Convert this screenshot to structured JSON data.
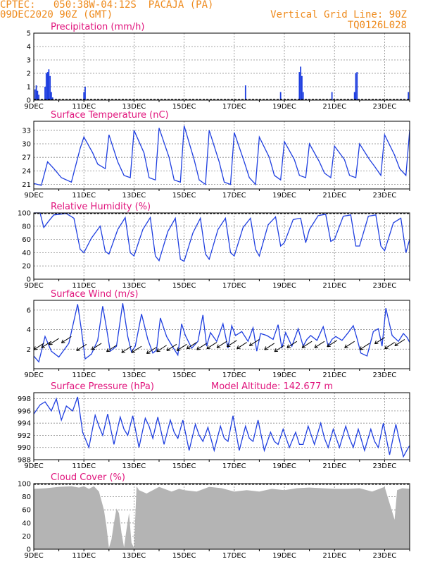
{
  "header": {
    "line1_left": "CPTEC:   050:38W-04:12S  PACAJA (PA)",
    "line2_left": "09DEC2020 90Z (GMT)",
    "line1_right": "Vertical Grid Line: 90Z",
    "line2_right": "TQ0126L028"
  },
  "colors": {
    "line": "#1f3fe0",
    "title": "#e0147c",
    "header": "#ee8a1c",
    "cloud": "#b4b4b4"
  },
  "x_axis": {
    "day_labels": [
      "9DEC",
      "11DEC",
      "13DEC",
      "15DEC",
      "17DEC",
      "19DEC",
      "21DEC",
      "23DEC"
    ]
  },
  "chart_data": [
    {
      "id": "precip",
      "type": "bar",
      "title": "Precipitation (mm/h)",
      "ylim": [
        0,
        5
      ],
      "yticks": [
        "0",
        "1",
        "2",
        "3",
        "4",
        "5"
      ],
      "days": [
        9,
        10,
        11,
        12,
        13,
        14,
        15,
        16,
        17,
        18,
        19,
        20,
        21,
        22,
        23,
        24
      ],
      "values_by_step": "see series",
      "series": [
        {
          "name": "",
          "x": [
            9.05,
            9.1,
            9.15,
            9.2,
            9.45,
            9.5,
            9.55,
            9.6,
            9.65,
            9.7,
            9.75,
            11.0,
            11.05,
            17.45,
            18.85,
            19.6,
            19.65,
            19.7,
            19.75,
            20.9,
            21.8,
            21.85,
            21.9,
            23.95
          ],
          "values": [
            0.8,
            1.1,
            0.7,
            0.4,
            1.0,
            2.0,
            2.1,
            2.3,
            1.8,
            0.6,
            0.2,
            0.6,
            1.0,
            1.1,
            0.6,
            2.1,
            2.5,
            1.8,
            0.6,
            0.6,
            0.6,
            2.0,
            2.1,
            0.6
          ]
        }
      ]
    },
    {
      "id": "temp",
      "type": "line",
      "title": "Surface Temperature (nC)",
      "ylim": [
        20,
        35
      ],
      "yticks": [
        "21",
        "24",
        "27",
        "30",
        "33"
      ],
      "series": [
        {
          "name": "",
          "x": [
            9.0,
            9.3,
            9.55,
            9.8,
            10.1,
            10.5,
            10.85,
            11.0,
            11.35,
            11.55,
            11.85,
            12.0,
            12.35,
            12.6,
            12.85,
            13.0,
            13.4,
            13.6,
            13.85,
            14.0,
            14.4,
            14.6,
            14.85,
            15.0,
            15.4,
            15.6,
            15.85,
            16.0,
            16.4,
            16.6,
            16.85,
            17.0,
            17.4,
            17.6,
            17.85,
            18.0,
            18.4,
            18.6,
            18.85,
            19.0,
            19.4,
            19.6,
            19.85,
            20.0,
            20.4,
            20.6,
            20.85,
            21.0,
            21.4,
            21.6,
            21.85,
            22.0,
            22.4,
            22.6,
            22.85,
            23.0,
            23.4,
            23.6,
            23.85,
            24.0
          ],
          "values": [
            21.2,
            20.8,
            26.0,
            24.5,
            22.5,
            21.5,
            29.0,
            31.5,
            28.0,
            25.5,
            24.5,
            32.0,
            26.0,
            23.0,
            22.5,
            33.0,
            28.0,
            22.5,
            22.0,
            33.5,
            27.0,
            22.0,
            21.5,
            34.0,
            26.5,
            22.0,
            21.0,
            33.0,
            26.0,
            21.5,
            21.0,
            32.5,
            26.0,
            22.5,
            21.0,
            31.5,
            27.0,
            23.0,
            22.0,
            30.5,
            26.5,
            23.0,
            22.5,
            30.0,
            26.0,
            23.5,
            22.5,
            29.5,
            26.5,
            23.0,
            22.5,
            30.0,
            26.5,
            25.0,
            23.0,
            32.0,
            27.5,
            24.5,
            23.0,
            33.0
          ]
        }
      ]
    },
    {
      "id": "rh",
      "type": "line",
      "title": "Relative Humidity (%)",
      "ylim": [
        0,
        100
      ],
      "yticks": [
        "0",
        "20",
        "40",
        "60",
        "80",
        "100"
      ],
      "series": [
        {
          "name": "",
          "x": [
            9.0,
            9.25,
            9.4,
            9.6,
            9.8,
            10.3,
            10.6,
            10.85,
            11.0,
            11.3,
            11.65,
            11.85,
            12.0,
            12.35,
            12.65,
            12.85,
            13.0,
            13.35,
            13.65,
            13.85,
            14.0,
            14.35,
            14.65,
            14.85,
            15.0,
            15.35,
            15.65,
            15.85,
            16.0,
            16.35,
            16.65,
            16.85,
            17.0,
            17.35,
            17.65,
            17.85,
            18.0,
            18.35,
            18.65,
            18.85,
            19.0,
            19.35,
            19.65,
            19.85,
            20.0,
            20.35,
            20.65,
            20.85,
            21.0,
            21.35,
            21.65,
            21.85,
            22.0,
            22.35,
            22.65,
            22.85,
            23.0,
            23.35,
            23.65,
            23.85,
            24.0
          ],
          "values": [
            100,
            100,
            78,
            88,
            97,
            99,
            92,
            45,
            40,
            62,
            80,
            42,
            38,
            75,
            93,
            40,
            35,
            75,
            93,
            35,
            28,
            72,
            92,
            30,
            27,
            70,
            92,
            38,
            30,
            75,
            92,
            40,
            35,
            78,
            92,
            45,
            35,
            82,
            94,
            50,
            55,
            90,
            92,
            55,
            75,
            96,
            98,
            57,
            60,
            95,
            97,
            50,
            50,
            95,
            97,
            50,
            43,
            85,
            92,
            40,
            60
          ]
        }
      ]
    },
    {
      "id": "wind",
      "type": "line",
      "title": "Surface Wind (m/s)",
      "ylim": [
        0,
        7
      ],
      "yticks": [
        "2",
        "4",
        "6"
      ],
      "series": [
        {
          "name": "",
          "x": [
            9.0,
            9.2,
            9.45,
            9.7,
            10.0,
            10.4,
            10.75,
            10.9,
            11.05,
            11.3,
            11.55,
            11.75,
            11.9,
            12.05,
            12.3,
            12.55,
            12.75,
            12.9,
            13.05,
            13.3,
            13.55,
            13.75,
            13.9,
            14.05,
            14.3,
            14.55,
            14.75,
            14.9,
            15.05,
            15.3,
            15.55,
            15.75,
            15.9,
            16.05,
            16.3,
            16.55,
            16.75,
            16.9,
            17.05,
            17.3,
            17.55,
            17.75,
            17.9,
            18.05,
            18.3,
            18.55,
            18.75,
            18.9,
            19.05,
            19.3,
            19.55,
            19.75,
            19.9,
            20.05,
            20.3,
            20.55,
            20.75,
            20.9,
            21.05,
            21.3,
            21.55,
            21.75,
            21.9,
            22.05,
            22.3,
            22.55,
            22.75,
            22.9,
            23.05,
            23.3,
            23.55,
            23.75,
            23.9,
            24.0
          ],
          "values": [
            1.3,
            0.7,
            3.3,
            1.8,
            1.2,
            2.6,
            6.6,
            4.0,
            1.0,
            1.5,
            2.9,
            6.4,
            4.2,
            1.8,
            2.3,
            6.7,
            3.3,
            1.7,
            2.3,
            5.6,
            3.0,
            1.6,
            1.9,
            5.2,
            3.3,
            2.2,
            1.4,
            4.6,
            3.4,
            2.1,
            2.8,
            5.5,
            2.3,
            3.7,
            2.8,
            4.6,
            2.1,
            4.4,
            3.4,
            3.8,
            2.8,
            4.2,
            1.8,
            3.6,
            3.4,
            3.0,
            4.5,
            2.1,
            3.7,
            2.3,
            4.1,
            2.3,
            3.0,
            3.4,
            2.9,
            4.3,
            2.3,
            3.0,
            3.3,
            2.9,
            3.7,
            4.4,
            3.1,
            1.6,
            1.3,
            3.8,
            4.1,
            2.3,
            6.2,
            3.4,
            2.8,
            3.6,
            3.2,
            2.7
          ]
        }
      ],
      "barbs": {
        "x": [
          9.4,
          9.7,
          10.0,
          10.5,
          11.1,
          11.7,
          12.3,
          12.9,
          13.3,
          13.9,
          14.3,
          14.7,
          15.1,
          15.5,
          15.9,
          16.3,
          16.7,
          17.1,
          17.5,
          18.0,
          18.6,
          19.0,
          19.5,
          20.1,
          20.6,
          21.1,
          21.8,
          22.4,
          23.0,
          23.4,
          23.8
        ],
        "values": [
          2.6,
          2.8,
          3.1,
          3.3,
          2.5,
          2.6,
          2.4,
          2.3,
          2.3,
          2.2,
          2.4,
          2.5,
          2.5,
          2.7,
          2.6,
          2.7,
          2.8,
          2.9,
          2.7,
          3.0,
          2.6,
          2.4,
          2.8,
          2.8,
          2.8,
          2.9,
          2.8,
          2.6,
          3.2,
          2.7,
          3.0
        ]
      }
    },
    {
      "id": "pres",
      "type": "line",
      "title": "Surface Pressure (hPa)",
      "annotation": "Model Altitude: 142.677  m",
      "ylim": [
        988,
        999
      ],
      "yticks": [
        "988",
        "990",
        "992",
        "994",
        "996",
        "998"
      ],
      "series": [
        {
          "name": "",
          "x": [
            9.0,
            9.25,
            9.45,
            9.7,
            9.9,
            10.1,
            10.3,
            10.55,
            10.75,
            10.95,
            11.2,
            11.45,
            11.6,
            11.75,
            11.95,
            12.2,
            12.45,
            12.6,
            12.75,
            12.95,
            13.2,
            13.45,
            13.6,
            13.75,
            13.95,
            14.2,
            14.45,
            14.6,
            14.75,
            14.95,
            15.2,
            15.45,
            15.6,
            15.75,
            15.95,
            16.2,
            16.45,
            16.6,
            16.75,
            16.95,
            17.2,
            17.45,
            17.6,
            17.75,
            17.95,
            18.2,
            18.45,
            18.6,
            18.75,
            18.95,
            19.2,
            19.45,
            19.6,
            19.75,
            19.95,
            20.2,
            20.45,
            20.6,
            20.75,
            20.95,
            21.2,
            21.45,
            21.6,
            21.75,
            21.95,
            22.2,
            22.45,
            22.6,
            22.75,
            22.95,
            23.2,
            23.45,
            23.6,
            23.75,
            23.95,
            24.0
          ],
          "values": [
            995.5,
            997.0,
            997.5,
            996.0,
            998.0,
            994.5,
            996.8,
            996.0,
            998.3,
            992.5,
            990.0,
            995.3,
            993.5,
            992.0,
            995.5,
            990.5,
            995.0,
            993.0,
            992.0,
            995.2,
            990.0,
            994.8,
            993.5,
            991.5,
            995.0,
            990.5,
            994.5,
            992.5,
            991.5,
            994.5,
            989.5,
            993.8,
            992.0,
            991.0,
            993.3,
            989.5,
            993.5,
            991.5,
            991.0,
            995.2,
            989.5,
            993.5,
            991.5,
            991.0,
            994.5,
            989.5,
            992.5,
            991.0,
            990.5,
            993.0,
            990.0,
            992.5,
            990.5,
            990.5,
            993.5,
            990.5,
            994.0,
            991.5,
            990.0,
            993.0,
            990.0,
            993.5,
            991.5,
            990.0,
            993.0,
            989.5,
            993.0,
            991.0,
            990.0,
            994.0,
            988.8,
            993.8,
            991.0,
            988.5,
            990.0,
            990.3
          ]
        }
      ]
    },
    {
      "id": "cloud",
      "type": "area",
      "title": "Cloud Cover (%)",
      "ylim": [
        0,
        100
      ],
      "yticks": [
        "0",
        "20",
        "40",
        "60",
        "80",
        "100"
      ],
      "series": [
        {
          "name": "",
          "x": [
            9.0,
            9.5,
            10.0,
            10.5,
            10.8,
            11.0,
            11.2,
            11.4,
            11.6,
            11.8,
            11.9,
            12.0,
            12.1,
            12.2,
            12.3,
            12.4,
            12.5,
            12.6,
            12.7,
            12.8,
            12.9,
            13.0,
            13.1,
            13.2,
            13.5,
            14.0,
            14.5,
            14.8,
            15.0,
            15.5,
            16.0,
            16.5,
            17.0,
            17.5,
            18.0,
            18.5,
            19.0,
            19.5,
            20.0,
            20.5,
            21.0,
            21.5,
            22.0,
            22.5,
            23.0,
            23.2,
            23.4,
            23.5,
            23.7,
            24.0
          ],
          "values": [
            92,
            93,
            95,
            96,
            94,
            96,
            92,
            96,
            88,
            60,
            35,
            2,
            15,
            40,
            62,
            55,
            25,
            3,
            30,
            55,
            10,
            2,
            96,
            90,
            85,
            95,
            88,
            92,
            90,
            88,
            95,
            93,
            88,
            90,
            88,
            92,
            90,
            93,
            94,
            93,
            92,
            92,
            93,
            88,
            95,
            70,
            45,
            90,
            93,
            92
          ]
        }
      ]
    }
  ]
}
